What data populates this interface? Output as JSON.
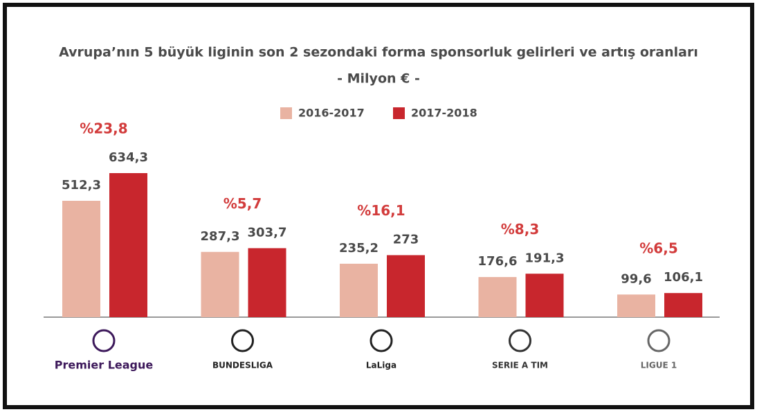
{
  "chart_data": {
    "type": "bar",
    "title": "Avrupa’nın 5 büyük liginin son 2 sezondaki forma sponsorluk gelirleri ve artış oranları",
    "subtitle": "- Milyon € -",
    "categories": [
      "Premier League",
      "BUNDESLIGA",
      "LaLiga",
      "SERIE A TIM",
      "LIGUE 1"
    ],
    "series": [
      {
        "name": "2016-2017",
        "color": "#e9b3a2",
        "values": [
          512.3,
          287.3,
          235.2,
          176.6,
          99.6
        ],
        "value_labels": [
          "512,3",
          "287,3",
          "235,2",
          "176,6",
          "99,6"
        ]
      },
      {
        "name": "2017-2018",
        "color": "#c8262d",
        "values": [
          634.3,
          303.7,
          273,
          191.3,
          106.1
        ],
        "value_labels": [
          "634,3",
          "303,7",
          "273",
          "191,3",
          "106,1"
        ]
      }
    ],
    "growth": {
      "color": "#d23b3b",
      "values": [
        23.8,
        5.7,
        16.1,
        8.3,
        6.5
      ],
      "value_labels": [
        "%23,8",
        "%5,7",
        "%16,1",
        "%8,3",
        "%6,5"
      ]
    },
    "legend": "top"
  }
}
